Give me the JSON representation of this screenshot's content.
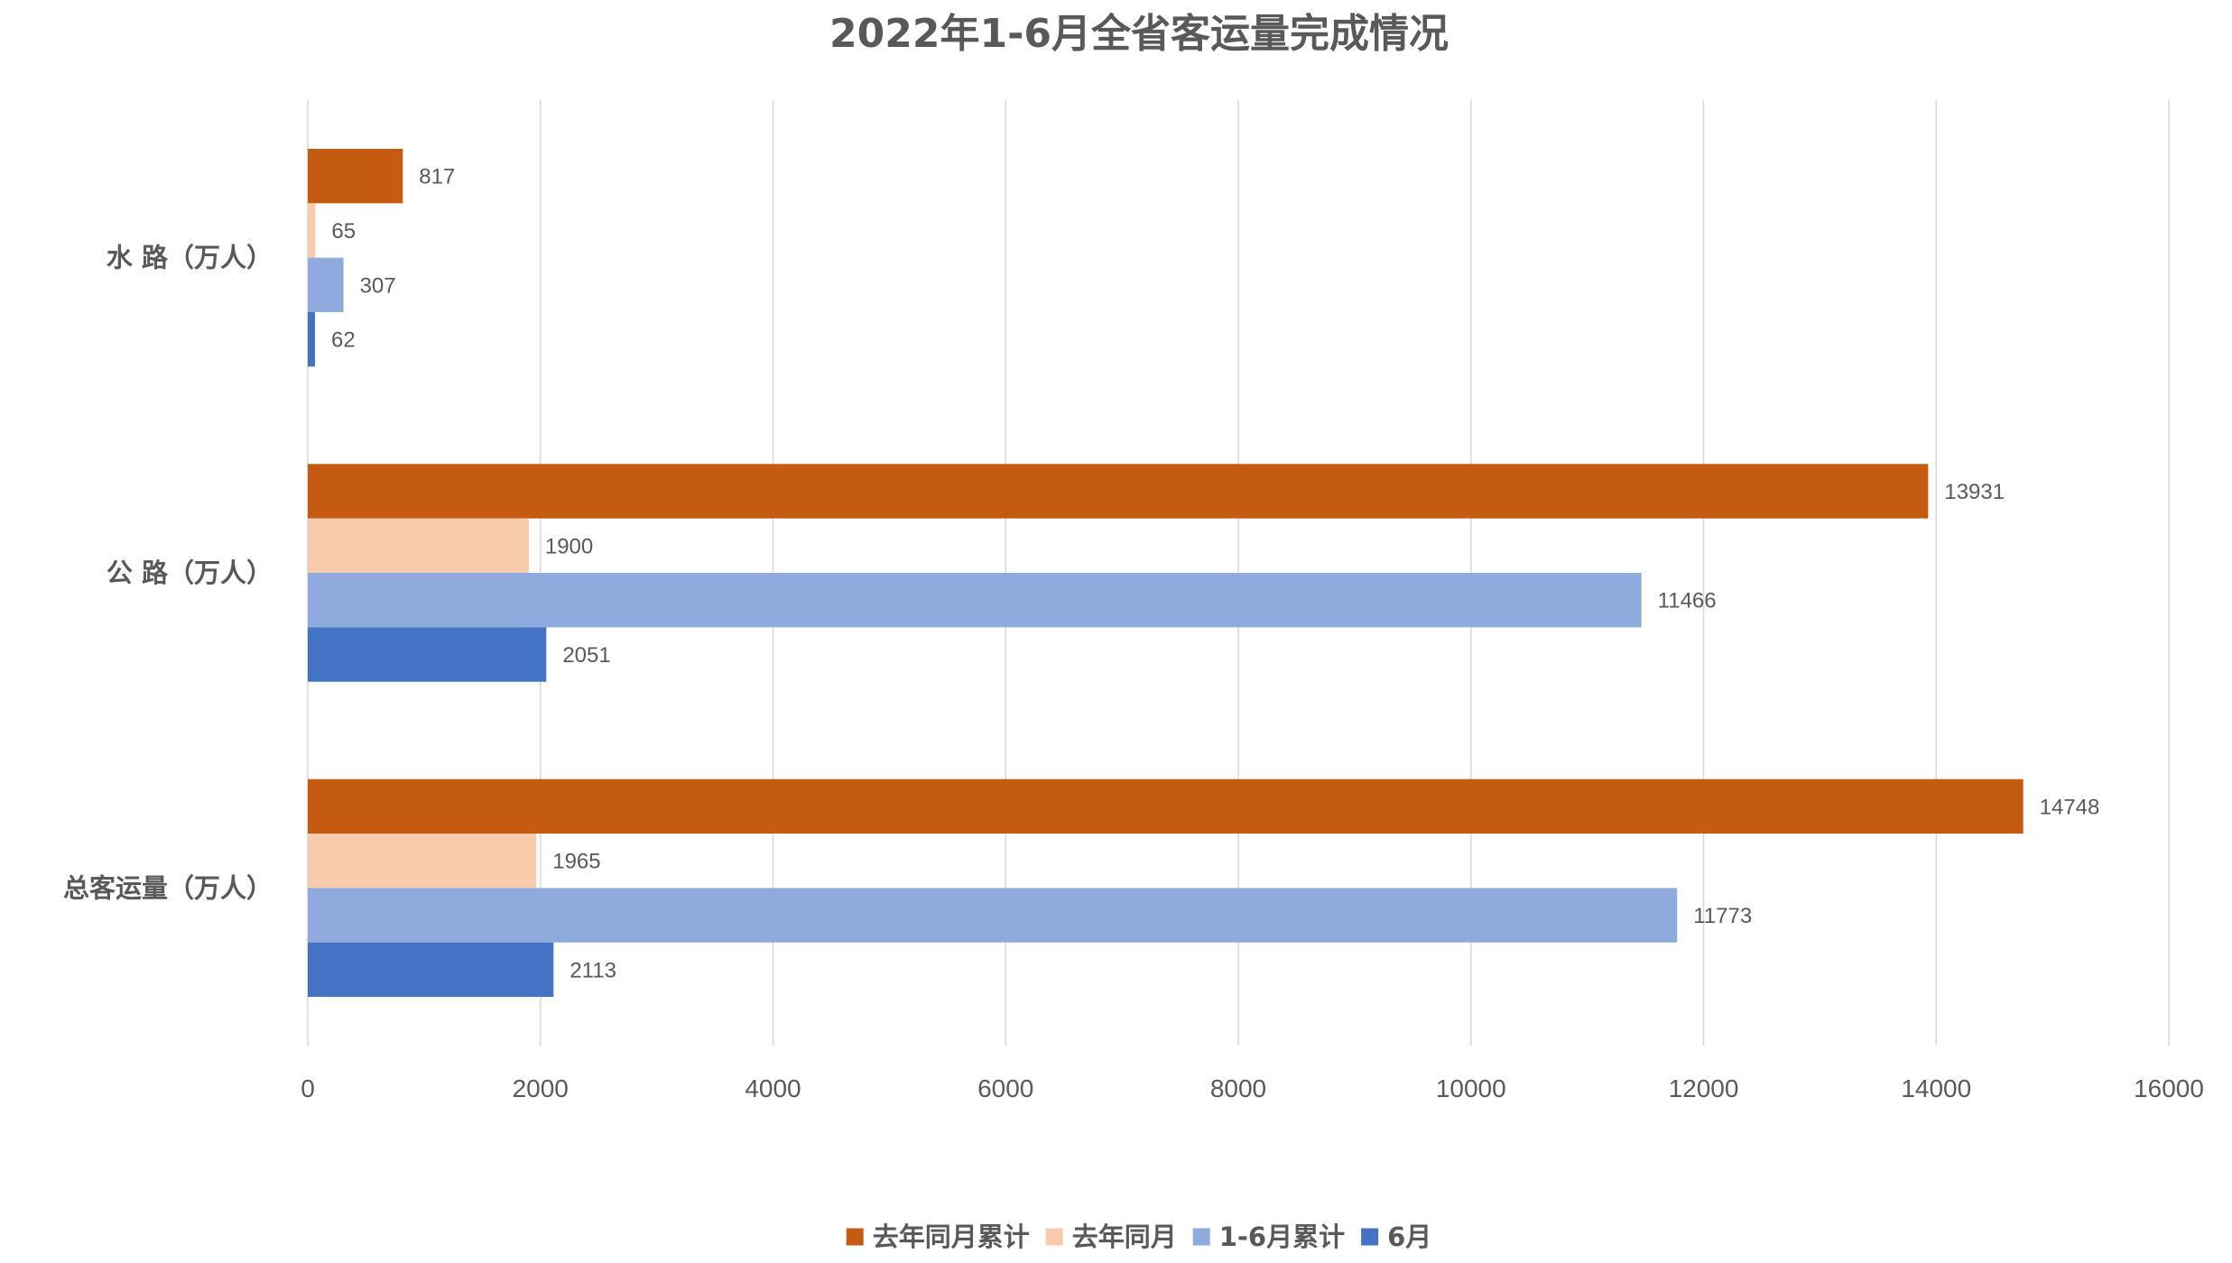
{
  "chart_data": {
    "type": "bar",
    "horizontal": true,
    "title": "2022年1-6月全省客运量完成情况",
    "categories": [
      "水 路（万人）",
      "公 路（万人）",
      "总客运量（万人）"
    ],
    "series": [
      {
        "name": "去年同月累计",
        "values": [
          817,
          13931,
          14748
        ],
        "color": "#C55A11"
      },
      {
        "name": "去年同月",
        "values": [
          65,
          1900,
          1965
        ],
        "color": "#F8CBAD"
      },
      {
        "name": "1-6月累计",
        "values": [
          307,
          11466,
          11773
        ],
        "color": "#8FAADC"
      },
      {
        "name": "6月",
        "values": [
          62,
          2051,
          2113
        ],
        "color": "#4472C4"
      }
    ],
    "xlim": [
      0,
      16000
    ],
    "xticks": [
      0,
      2000,
      4000,
      6000,
      8000,
      10000,
      12000,
      14000,
      16000
    ],
    "grid": true,
    "data_labels": true,
    "legend": "bottom-center"
  }
}
